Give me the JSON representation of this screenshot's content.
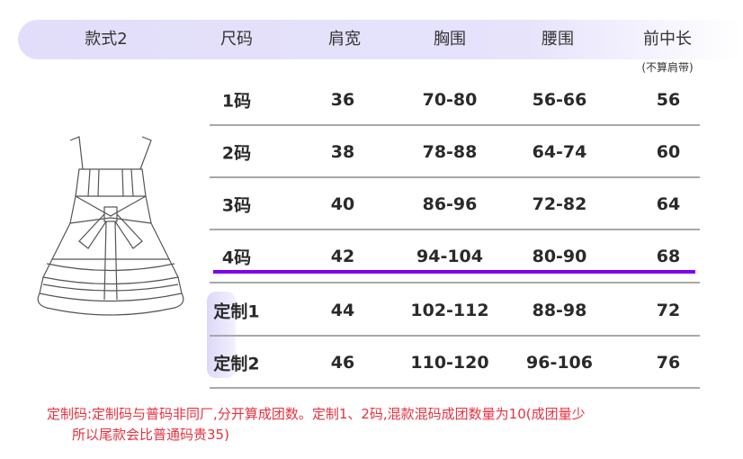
{
  "header": {
    "style": "款式2",
    "columns": [
      "尺码",
      "肩宽",
      "胸围",
      "腰围",
      "前中长"
    ],
    "length_note": "(不算肩带)"
  },
  "rows": [
    [
      "1码",
      "36",
      "70-80",
      "56-66",
      "56"
    ],
    [
      "2码",
      "38",
      "78-88",
      "64-74",
      "60"
    ],
    [
      "3码",
      "40",
      "86-96",
      "72-82",
      "64"
    ],
    [
      "4码",
      "42",
      "94-104",
      "80-90",
      "68"
    ],
    [
      "定制1",
      "44",
      "102-112",
      "88-98",
      "72"
    ],
    [
      "定制2",
      "46",
      "110-120",
      "96-106",
      "76"
    ]
  ],
  "note": {
    "line1": "定制码:定制码与普码非同厂,分开算成团数。定制1、2码,混款混码成团数量为10(成团量少",
    "line2": "所以尾款会比普通码贵35)"
  },
  "colors": {
    "header_bg": "#e2defa",
    "highlight_line": "#8000ee",
    "note_text": "#e5323f"
  }
}
